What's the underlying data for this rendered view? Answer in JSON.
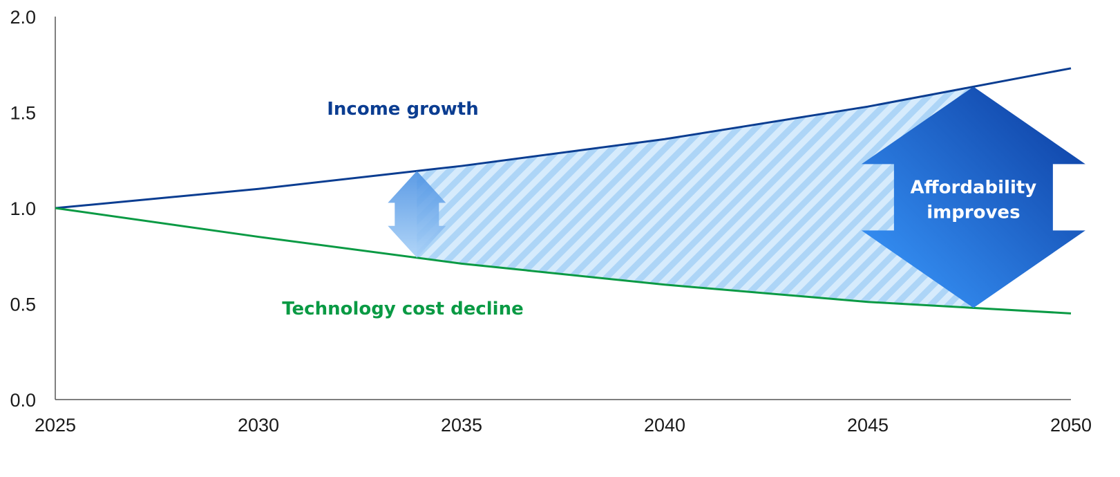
{
  "chart_data": {
    "type": "line",
    "x": [
      2025,
      2030,
      2035,
      2040,
      2045,
      2050
    ],
    "xlim": [
      2025,
      2050
    ],
    "ylim": [
      0,
      2.0
    ],
    "x_ticks": [
      "2025",
      "2030",
      "2035",
      "2040",
      "2045",
      "2050"
    ],
    "y_ticks": [
      "0.0",
      "0.5",
      "1.0",
      "1.5",
      "2.0"
    ],
    "grid": false,
    "series": [
      {
        "name": "Income growth",
        "color": "#0b3d91",
        "values": [
          1.0,
          1.1,
          1.22,
          1.36,
          1.53,
          1.73
        ]
      },
      {
        "name": "Technology cost decline",
        "color": "#0a9a44",
        "values": [
          1.0,
          0.85,
          0.71,
          0.6,
          0.51,
          0.45
        ]
      }
    ],
    "shaded_region": {
      "between": [
        "Income growth",
        "Technology cost decline"
      ],
      "x_range": [
        2033.9,
        2047.6
      ],
      "pattern": "diagonal-stripes",
      "color": "#7ab8f5"
    },
    "annotations": [
      {
        "text_lines": [
          "Affordability",
          "improves"
        ],
        "shape": "double-arrow",
        "x": 2047.6
      },
      {
        "shape": "small-double-arrow",
        "x": 2033.9
      }
    ]
  }
}
